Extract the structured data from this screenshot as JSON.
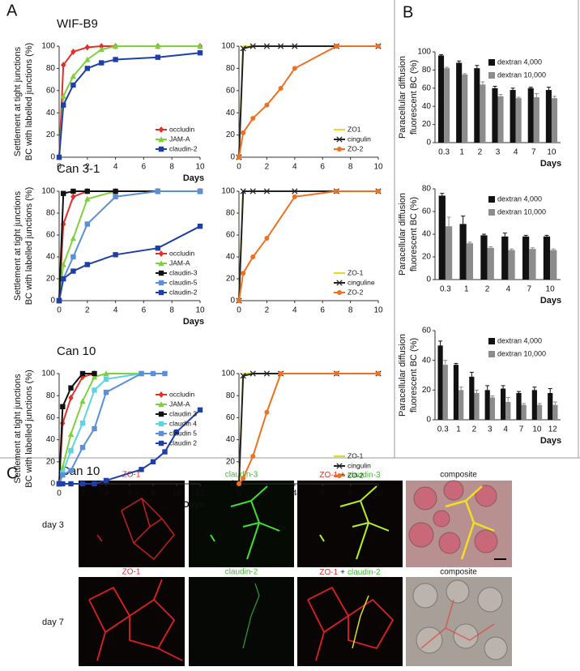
{
  "panel_labels": [
    "A",
    "B",
    "C"
  ],
  "chart_data": [
    {
      "type": "line",
      "title": "WIF-B9",
      "ylabel": [
        "Settlement at tight junctions",
        "BC with labelled junctions (%)"
      ],
      "xlabel": "Days",
      "xlim": [
        0,
        10
      ],
      "xticks": [
        0,
        2,
        4,
        6,
        8,
        10
      ],
      "ylim": [
        0,
        100
      ],
      "yticks": [
        0,
        20,
        40,
        60,
        80,
        100
      ],
      "legend": "lower right",
      "series": [
        {
          "name": "occludin",
          "color": "#e0302a",
          "marker": "diamond",
          "x": [
            0,
            0.3,
            1,
            2,
            3,
            4,
            7,
            10
          ],
          "values": [
            0,
            83,
            95,
            99,
            100,
            100,
            100,
            100
          ]
        },
        {
          "name": "JAM-A",
          "color": "#7fd13b",
          "marker": "triangle",
          "x": [
            0,
            0.3,
            1,
            2,
            3,
            4,
            7,
            10
          ],
          "values": [
            0,
            55,
            73,
            88,
            97,
            100,
            100,
            100
          ]
        },
        {
          "name": "claudin-2",
          "color": "#1f3fa8",
          "marker": "square",
          "x": [
            0,
            0.3,
            1,
            2,
            3,
            4,
            7,
            10
          ],
          "values": [
            0,
            47,
            65,
            80,
            85,
            88,
            90,
            94
          ]
        }
      ]
    },
    {
      "type": "line",
      "xlim": [
        0,
        10
      ],
      "xticks": [
        0,
        2,
        4,
        6,
        8,
        10
      ],
      "ylim": [
        0,
        100
      ],
      "yticks": [
        0,
        20,
        40,
        60,
        80,
        100
      ],
      "legend": "lower right",
      "series": [
        {
          "name": "ZO1",
          "color": "#e8d820",
          "marker": "none",
          "x": [
            0,
            0.3,
            1,
            2,
            3,
            4,
            7,
            10
          ],
          "values": [
            0,
            100,
            100,
            100,
            100,
            100,
            100,
            100
          ]
        },
        {
          "name": "cingulin",
          "color": "#222222",
          "marker": "x",
          "x": [
            0,
            0.3,
            1,
            2,
            3,
            4,
            7,
            10
          ],
          "values": [
            0,
            98,
            100,
            100,
            100,
            100,
            100,
            100
          ]
        },
        {
          "name": "ZO-2",
          "color": "#f07020",
          "marker": "circle",
          "x": [
            0,
            0.3,
            1,
            2,
            3,
            4,
            7,
            10
          ],
          "values": [
            0,
            22,
            35,
            47,
            62,
            80,
            100,
            100
          ]
        }
      ]
    },
    {
      "type": "line",
      "title": "Can 3-1",
      "ylabel": [
        "Settlement at tight junctions",
        "BC with labelled junctions (%)"
      ],
      "xlabel": "Days",
      "xlim": [
        0,
        10
      ],
      "xticks": [
        0,
        2,
        4,
        6,
        8,
        10
      ],
      "ylim": [
        0,
        100
      ],
      "yticks": [
        0,
        20,
        40,
        60,
        80,
        100
      ],
      "legend": "lower right",
      "series": [
        {
          "name": "occludin",
          "color": "#e0302a",
          "marker": "diamond",
          "x": [
            0,
            0.3,
            1,
            2,
            4,
            7,
            10
          ],
          "values": [
            0,
            70,
            95,
            100,
            100,
            100,
            100
          ]
        },
        {
          "name": "JAM-A",
          "color": "#7fd13b",
          "marker": "triangle",
          "x": [
            0,
            0.3,
            1,
            2,
            4,
            7,
            10
          ],
          "values": [
            0,
            33,
            57,
            93,
            100,
            100,
            100
          ]
        },
        {
          "name": "claudin-3",
          "color": "#111111",
          "marker": "square",
          "x": [
            0,
            0.3,
            1,
            2,
            4,
            7,
            10
          ],
          "values": [
            0,
            98,
            100,
            100,
            100,
            100,
            100
          ]
        },
        {
          "name": "claudin-5",
          "color": "#5b8fd8",
          "marker": "square",
          "x": [
            0,
            0.3,
            1,
            2,
            4,
            7,
            10
          ],
          "values": [
            0,
            20,
            40,
            70,
            95,
            100,
            100
          ]
        },
        {
          "name": "claudin-2",
          "color": "#1f3fa8",
          "marker": "square",
          "x": [
            0,
            0.3,
            1,
            2,
            4,
            7,
            10
          ],
          "values": [
            0,
            20,
            27,
            33,
            42,
            48,
            68
          ]
        }
      ]
    },
    {
      "type": "line",
      "xlim": [
        0,
        10
      ],
      "xticks": [
        0,
        2,
        4,
        6,
        8,
        10
      ],
      "ylim": [
        0,
        100
      ],
      "yticks": [
        0,
        20,
        40,
        60,
        80,
        100
      ],
      "legend": "lower right",
      "series": [
        {
          "name": "ZO-1",
          "color": "#e8d820",
          "marker": "none",
          "x": [
            0,
            0.3,
            1,
            2,
            4,
            7,
            10
          ],
          "values": [
            0,
            100,
            100,
            100,
            100,
            100,
            100
          ]
        },
        {
          "name": "cinguline",
          "color": "#222222",
          "marker": "x",
          "x": [
            0,
            0.3,
            1,
            2,
            4,
            7,
            10
          ],
          "values": [
            0,
            100,
            100,
            100,
            100,
            100,
            100
          ]
        },
        {
          "name": "ZO-2",
          "color": "#f07020",
          "marker": "circle",
          "x": [
            0,
            0.3,
            1,
            2,
            4,
            7,
            10
          ],
          "values": [
            0,
            25,
            40,
            57,
            95,
            100,
            100
          ]
        }
      ]
    },
    {
      "type": "line",
      "title": "Can 10",
      "ylabel": [
        "Settlement at tight junctions",
        "BC with labelled junctions (%)"
      ],
      "xlabel": "Days",
      "xlim": [
        0,
        12
      ],
      "xticks": [
        0,
        2,
        4,
        6,
        8,
        10,
        12
      ],
      "ylim": [
        0,
        100
      ],
      "yticks": [
        0,
        20,
        40,
        60,
        80,
        100
      ],
      "legend": "center right",
      "series": [
        {
          "name": "occludin",
          "color": "#e0302a",
          "marker": "diamond",
          "x": [
            0,
            0.3,
            1,
            2,
            3
          ],
          "values": [
            0,
            55,
            78,
            97,
            100
          ]
        },
        {
          "name": "JAM-A",
          "color": "#7fd13b",
          "marker": "triangle",
          "x": [
            0,
            0.3,
            1,
            2,
            3,
            4,
            7
          ],
          "values": [
            0,
            15,
            45,
            75,
            97,
            100,
            100
          ]
        },
        {
          "name": "claudin 3",
          "color": "#111111",
          "marker": "square",
          "x": [
            0,
            0.3,
            1,
            2,
            3
          ],
          "values": [
            0,
            70,
            87,
            100,
            100
          ]
        },
        {
          "name": "claudin 4",
          "color": "#5fd3e6",
          "marker": "square",
          "x": [
            0,
            0.3,
            1,
            2,
            3,
            4,
            7
          ],
          "values": [
            0,
            10,
            30,
            55,
            85,
            95,
            100
          ]
        },
        {
          "name": "claudin 5",
          "color": "#5b8fd8",
          "marker": "square",
          "x": [
            0,
            0.3,
            1,
            2,
            3,
            4,
            7,
            8,
            9
          ],
          "values": [
            0,
            8,
            12,
            33,
            50,
            83,
            100,
            100,
            100
          ]
        },
        {
          "name": "claudin 2",
          "color": "#1f3fa8",
          "marker": "square",
          "x": [
            0,
            0.3,
            1,
            2,
            3,
            4,
            7,
            8,
            9,
            10,
            12
          ],
          "values": [
            0,
            0,
            0,
            0,
            0,
            3,
            13,
            20,
            29,
            47,
            67
          ]
        }
      ]
    },
    {
      "type": "line",
      "xlim": [
        0,
        10
      ],
      "xticks": [
        0,
        2,
        4,
        6,
        8,
        10
      ],
      "ylim": [
        0,
        100
      ],
      "yticks": [
        0,
        20,
        40,
        60,
        80,
        100
      ],
      "legend": "lower right",
      "series": [
        {
          "name": "ZO-1",
          "color": "#e8d820",
          "marker": "none",
          "x": [
            0,
            0.3,
            1,
            2,
            3,
            7,
            10
          ],
          "values": [
            0,
            100,
            100,
            100,
            100,
            100,
            100
          ]
        },
        {
          "name": "cingulin",
          "color": "#222222",
          "marker": "x",
          "x": [
            0,
            0.3,
            1,
            2,
            3,
            7,
            10
          ],
          "values": [
            0,
            98,
            100,
            100,
            100,
            100,
            100
          ]
        },
        {
          "name": "ZO-2",
          "color": "#f07020",
          "marker": "circle",
          "x": [
            0,
            0.3,
            1,
            2,
            3,
            7,
            10
          ],
          "values": [
            0,
            5,
            25,
            65,
            100,
            100,
            100
          ]
        }
      ]
    },
    {
      "type": "bar",
      "ylabel": [
        "Paracellular diffusion",
        "fluorescent BC (%)"
      ],
      "xlabel": "Days",
      "categories": [
        "0.3",
        "1",
        "2",
        "3",
        "4",
        "7",
        "10"
      ],
      "ylim": [
        0,
        100
      ],
      "yticks": [
        0,
        20,
        40,
        60,
        80,
        100
      ],
      "legend": "upper right",
      "series": [
        {
          "name": "dextran 4,000",
          "color": "#111111",
          "values": [
            96,
            88,
            82,
            60,
            58,
            60,
            58
          ],
          "errors": [
            1,
            2,
            3,
            2,
            2,
            1,
            3
          ]
        },
        {
          "name": "dextran 10,000",
          "color": "#8c8c8c",
          "values": [
            82,
            75,
            64,
            51,
            49,
            50,
            49
          ],
          "errors": [
            1,
            1,
            3,
            2,
            1,
            4,
            2
          ]
        }
      ]
    },
    {
      "type": "bar",
      "ylabel": [
        "Paracellular diffusion",
        "fluorescent BC (%)"
      ],
      "xlabel": "Days",
      "categories": [
        "0.3",
        "1",
        "2",
        "4",
        "7",
        "10"
      ],
      "ylim": [
        0,
        80
      ],
      "yticks": [
        0,
        20,
        40,
        60,
        80
      ],
      "legend": "upper right",
      "series": [
        {
          "name": "dextran 4,000",
          "color": "#111111",
          "values": [
            74,
            49,
            39,
            38,
            38,
            38
          ],
          "errors": [
            2,
            7,
            1,
            3,
            1,
            1
          ]
        },
        {
          "name": "dextran 10,000",
          "color": "#8c8c8c",
          "values": [
            47,
            32,
            28,
            26,
            27,
            26
          ],
          "errors": [
            8,
            1,
            1,
            1,
            1,
            1
          ]
        }
      ]
    },
    {
      "type": "bar",
      "ylabel": [
        "Paracellular diffusion",
        "fluorescent BC (%)"
      ],
      "xlabel": "Days",
      "categories": [
        "0.3",
        "1",
        "2",
        "3",
        "4",
        "7",
        "10",
        "12"
      ],
      "ylim": [
        0,
        60
      ],
      "yticks": [
        0,
        20,
        40,
        60
      ],
      "legend": "upper right",
      "series": [
        {
          "name": "dextran 4,000",
          "color": "#111111",
          "values": [
            50,
            37,
            29,
            20,
            21,
            18,
            20,
            18
          ],
          "errors": [
            3,
            1,
            3,
            3,
            2,
            1,
            2,
            3
          ]
        },
        {
          "name": "dextran 10,000",
          "color": "#8c8c8c",
          "values": [
            37,
            20,
            18,
            15,
            12,
            10,
            10,
            10
          ],
          "errors": [
            3,
            2,
            2,
            1,
            3,
            1,
            1,
            2
          ]
        }
      ]
    }
  ],
  "panel_c": {
    "title": "Can 10",
    "rows": [
      {
        "label": "day 3",
        "first": "ZO-1",
        "second": "claudin-3",
        "merge": [
          "ZO-1",
          "+",
          "claudin-3"
        ],
        "composite": "composite"
      },
      {
        "label": "day 7",
        "first": "ZO-1",
        "second": "claudin-2",
        "merge": [
          "ZO-1",
          "+",
          "claudin-2"
        ],
        "composite": "composite"
      }
    ]
  }
}
